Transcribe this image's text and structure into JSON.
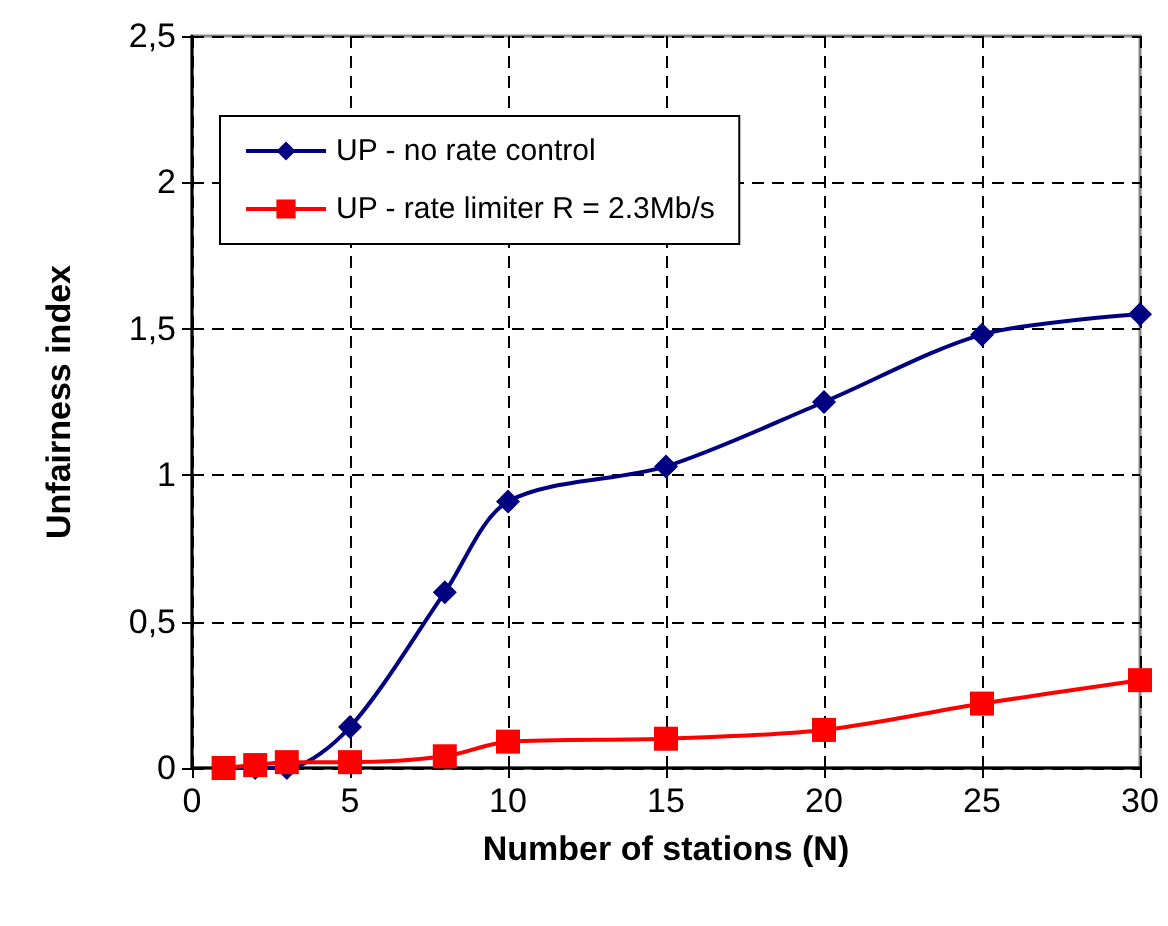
{
  "chart_data": {
    "type": "line",
    "xlabel": "Number of stations (N)",
    "ylabel": "Unfairness index",
    "x": [
      1,
      2,
      3,
      5,
      8,
      10,
      15,
      20,
      25,
      30
    ],
    "series": [
      {
        "name": "UP - no rate control",
        "color": "#000080",
        "marker": "diamond",
        "values": [
          0,
          0,
          0,
          0.14,
          0.6,
          0.91,
          1.03,
          1.25,
          1.48,
          1.55
        ]
      },
      {
        "name": "UP - rate limiter R = 2.3Mb/s",
        "color": "#ff0000",
        "marker": "square",
        "values": [
          0,
          0.01,
          0.02,
          0.02,
          0.04,
          0.09,
          0.1,
          0.13,
          0.22,
          0.3
        ]
      }
    ],
    "xlim": [
      0,
      30
    ],
    "xticks": [
      0,
      5,
      10,
      15,
      20,
      25,
      30
    ],
    "ylim": [
      0,
      2.5
    ],
    "yticks": [
      0,
      {
        "value": 0.5,
        "label": "0,5"
      },
      1,
      {
        "value": 1.5,
        "label": "1,5"
      },
      2,
      {
        "value": 2.5,
        "label": "2,5"
      }
    ],
    "grid": true,
    "legend": "top left",
    "line_style": "solid"
  }
}
